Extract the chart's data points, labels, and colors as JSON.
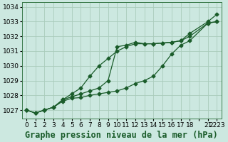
{
  "title": "Graphe pression niveau de la mer (hPa)",
  "bg_color": "#cce8e0",
  "grid_color": "#aaccbb",
  "line_color": "#1a5c2a",
  "ylim": [
    1026.4,
    1034.3
  ],
  "yticks": [
    1027,
    1028,
    1029,
    1030,
    1031,
    1032,
    1033,
    1034
  ],
  "x_positions": [
    0,
    1,
    2,
    3,
    4,
    5,
    6,
    7,
    8,
    9,
    10,
    11,
    12,
    13,
    14,
    15,
    16,
    17,
    18,
    19,
    20,
    21
  ],
  "x_labels": [
    "0",
    "1",
    "2",
    "3",
    "4",
    "5",
    "6",
    "7",
    "8",
    "9",
    "10",
    "11",
    "12",
    "13",
    "14",
    "15",
    "16",
    "17",
    "18",
    "",
    "21",
    "2223"
  ],
  "line1_x": [
    0,
    1,
    2,
    3,
    4,
    5,
    6,
    7,
    8,
    9,
    10,
    11,
    12,
    13,
    14,
    15,
    16,
    17,
    18,
    20,
    21
  ],
  "line1": [
    1027.0,
    1026.8,
    1027.0,
    1027.2,
    1027.6,
    1027.8,
    1027.85,
    1028.0,
    1028.1,
    1028.2,
    1028.3,
    1028.5,
    1028.8,
    1029.0,
    1029.3,
    1030.0,
    1030.8,
    1031.4,
    1031.7,
    1032.9,
    1033.0
  ],
  "line2_x": [
    0,
    1,
    2,
    3,
    4,
    5,
    6,
    7,
    8,
    9,
    10,
    11,
    12,
    13,
    14,
    15,
    16,
    17,
    18,
    20,
    21
  ],
  "line2": [
    1027.0,
    1026.8,
    1027.0,
    1027.2,
    1027.7,
    1028.1,
    1028.5,
    1029.3,
    1030.0,
    1030.5,
    1031.0,
    1031.3,
    1031.5,
    1031.5,
    1031.5,
    1031.55,
    1031.6,
    1031.7,
    1032.2,
    1033.0,
    1033.5
  ],
  "line3_x": [
    0,
    1,
    2,
    3,
    4,
    5,
    6,
    7,
    8,
    9,
    10,
    11,
    12,
    13,
    14,
    15,
    16,
    17,
    18,
    20,
    21
  ],
  "line3": [
    1027.0,
    1026.8,
    1027.0,
    1027.2,
    1027.7,
    1027.9,
    1028.1,
    1028.3,
    1028.5,
    1029.0,
    1031.3,
    1031.4,
    1031.6,
    1031.5,
    1031.5,
    1031.55,
    1031.6,
    1031.7,
    1032.0,
    1032.9,
    1033.0
  ],
  "title_fontsize": 8.5,
  "tick_fontsize": 6.5
}
